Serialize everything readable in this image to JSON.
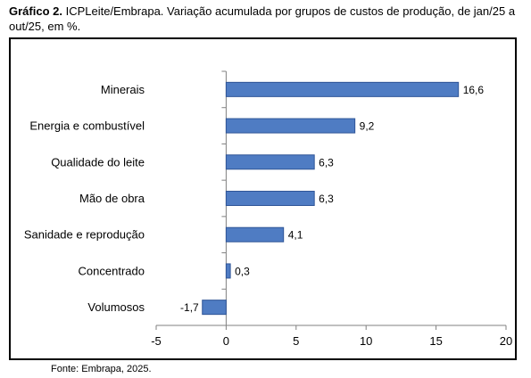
{
  "caption": {
    "label": "Gráfico 2.",
    "text": " ICPLeite/Embrapa. Variação acumulada por grupos de custos de produção, de jan/25 a out/25, em %."
  },
  "source": "Fonte: Embrapa, 2025.",
  "colors": {
    "bar_fill": "#4f7cc3",
    "bar_stroke": "#2f5597",
    "axis": "#808080"
  },
  "chart_data": {
    "type": "bar",
    "orientation": "horizontal",
    "categories": [
      "Minerais",
      "Energia e combustível",
      "Qualidade do leite",
      "Mão de obra",
      "Sanidade e reprodução",
      "Concentrado",
      "Volumosos"
    ],
    "values": [
      16.6,
      9.2,
      6.3,
      6.3,
      4.1,
      0.3,
      -1.7
    ],
    "value_labels": [
      "16,6",
      "9,2",
      "6,3",
      "6,3",
      "4,1",
      "0,3",
      "-1,7"
    ],
    "xlim": [
      -5,
      20
    ],
    "xticks": [
      -5,
      0,
      5,
      10,
      15,
      20
    ],
    "xtick_labels": [
      "-5",
      "0",
      "5",
      "10",
      "15",
      "20"
    ],
    "grid": false,
    "legend": "none"
  }
}
